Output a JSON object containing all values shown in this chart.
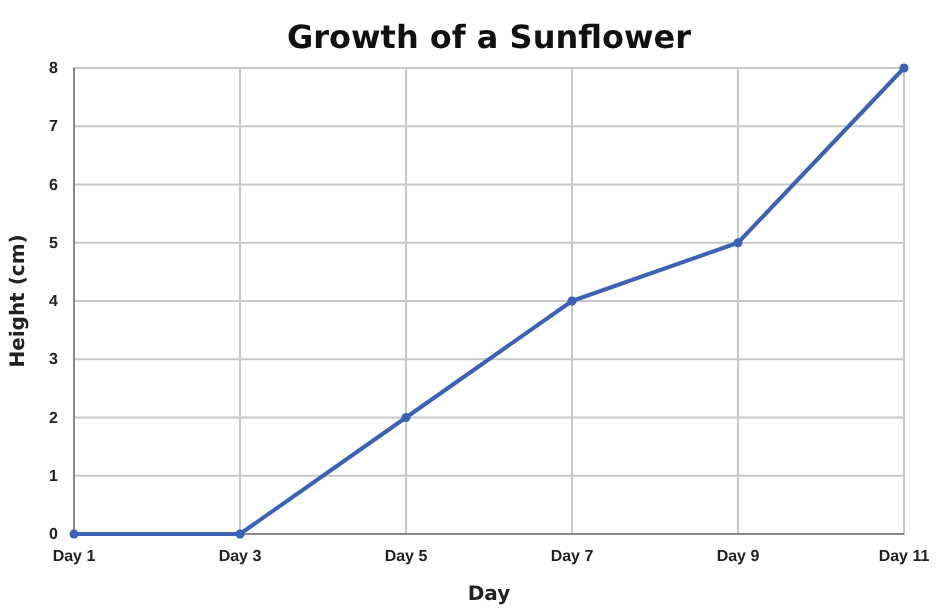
{
  "chart_data": {
    "type": "line",
    "title": "Growth of a Sunflower",
    "xlabel": "Day",
    "ylabel": "Height (cm)",
    "categories": [
      "Day 1",
      "Day 3",
      "Day 5",
      "Day 7",
      "Day 9",
      "Day 11"
    ],
    "series": [
      {
        "color": "#3b62b5",
        "values": [
          0,
          0,
          2,
          4,
          5,
          8
        ]
      }
    ],
    "ylim": [
      0,
      8
    ],
    "yticks": [
      0,
      1,
      2,
      3,
      4,
      5,
      6,
      7,
      8
    ],
    "grid": true,
    "marker": "circle",
    "line_style": "solid"
  }
}
